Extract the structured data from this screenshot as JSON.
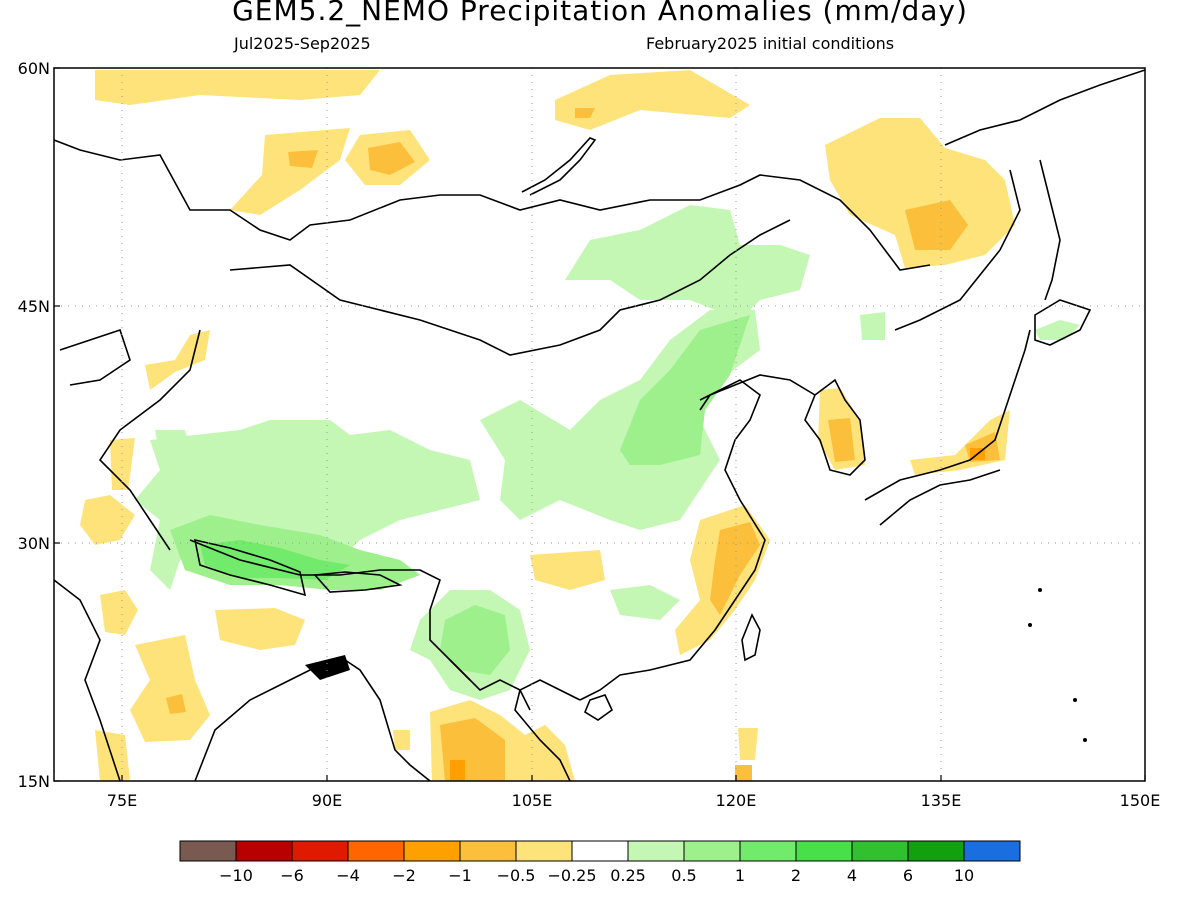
{
  "header": {
    "title": "GEM5.2_NEMO Precipitation Anomalies (mm/day)",
    "period": "Jul2025-Sep2025",
    "initial_conditions": "February2025 initial conditions"
  },
  "map": {
    "lon_range": [
      70,
      150
    ],
    "lat_range": [
      15,
      60
    ],
    "lon_ticks": [
      "75E",
      "90E",
      "105E",
      "120E",
      "135E",
      "150E"
    ],
    "lat_ticks": [
      "60N",
      "45N",
      "30N",
      "15N"
    ],
    "grid": "dotted",
    "coastline_color": "#000000"
  },
  "colorbar": {
    "labels": [
      "-10",
      "-6",
      "-4",
      "-2",
      "-1",
      "-0.5",
      "-0.25",
      "0.25",
      "0.5",
      "1",
      "2",
      "4",
      "6",
      "10"
    ],
    "colors": [
      "#7a5a50",
      "#b80000",
      "#e01a00",
      "#ff6600",
      "#ffa000",
      "#fbbf3c",
      "#fde37a",
      "#ffffff",
      "#c4f7b4",
      "#9ef08c",
      "#72ea6c",
      "#48e048",
      "#30c030",
      "#10a010",
      "#1a6ee0"
    ]
  },
  "anomaly_regions": [
    {
      "name": "north-siberia-dry",
      "category": "-0.25"
    },
    {
      "name": "lake-baikal-dry",
      "category": "-0.5"
    },
    {
      "name": "northeast-china-dry",
      "category": "-0.5"
    },
    {
      "name": "central-china-wet",
      "category": "0.5"
    },
    {
      "name": "tibet-himalaya-wet",
      "category": "1"
    },
    {
      "name": "india-dry",
      "category": "-0.5"
    },
    {
      "name": "indochina-dry",
      "category": "-1"
    },
    {
      "name": "east-china-coast-dry",
      "category": "-1"
    },
    {
      "name": "korea-japan-dry",
      "category": "-1"
    }
  ]
}
